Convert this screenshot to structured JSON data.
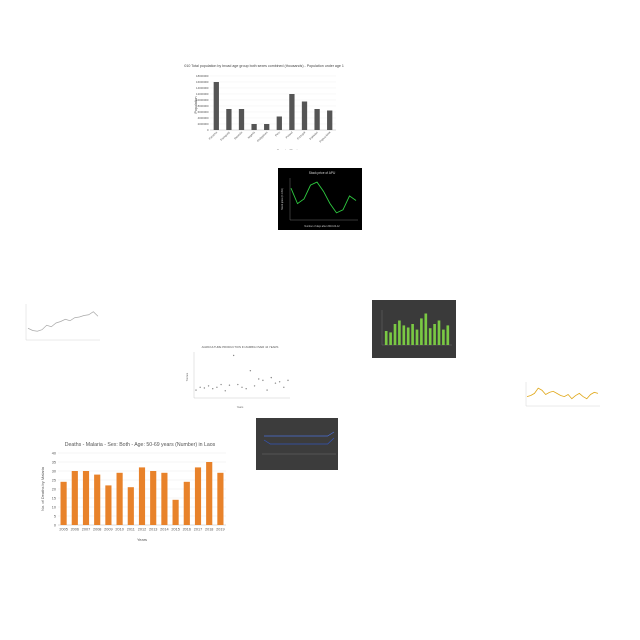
{
  "chart_data": [
    {
      "type": "bar",
      "title": "Edmonds, 1960 - 2010 Total population by broad age group both sexes combined (thousands) - Population under age 15 for the year 1965",
      "xlabel": "Country/Region",
      "ylabel": "Population",
      "categories": [
        "Panama",
        "Paraguay",
        "Rwanda",
        "Nigeria",
        "Philippines",
        "Peru",
        "Poland",
        "Portugal",
        "Pakistan",
        "Papua New"
      ],
      "values": [
        16000000,
        7000000,
        7000000,
        2000000,
        2000000,
        4500000,
        12000000,
        9500000,
        7000000,
        6500000
      ],
      "yticks": [
        "0",
        "2000000",
        "4000000",
        "6000000",
        "8000000",
        "10000000",
        "12000000",
        "14000000",
        "16000000",
        "18000000"
      ],
      "ylim": [
        0,
        18000000
      ],
      "colors": {
        "bar": "#555555",
        "background": "#ffffff"
      }
    },
    {
      "type": "line",
      "title": "Stock price of APU",
      "xlabel": "Number of days after 2010-04-12",
      "ylabel": "Stock price (in USD)",
      "x": [
        0,
        1,
        2,
        3,
        4,
        5,
        6,
        7,
        8,
        9,
        10
      ],
      "values": [
        38,
        28,
        31,
        40,
        42,
        36,
        28,
        22,
        24,
        33,
        30
      ],
      "colors": {
        "line": "#2ecc40",
        "background": "#000000"
      }
    },
    {
      "type": "line",
      "title": "",
      "x": [
        1,
        2,
        3,
        4,
        5,
        6,
        7,
        8,
        9,
        10,
        11,
        12,
        13,
        14,
        15,
        16
      ],
      "values": [
        48,
        45,
        44,
        46,
        52,
        50,
        55,
        57,
        60,
        58,
        62,
        63,
        65,
        66,
        70,
        64
      ],
      "colors": {
        "line": "#aaaaaa",
        "background": "#ffffff"
      }
    },
    {
      "type": "bar",
      "title": "",
      "x": [
        1,
        2,
        3,
        4,
        5,
        6,
        7,
        8,
        9,
        10,
        11,
        12,
        13,
        14,
        15
      ],
      "values": [
        20,
        18,
        30,
        35,
        28,
        25,
        30,
        22,
        38,
        45,
        24,
        30,
        35,
        22,
        28
      ],
      "colors": {
        "bar": "#7ac943",
        "background": "#3a3a3a"
      }
    },
    {
      "type": "scatter",
      "title": "AGRICULTURE PRODUCTION IN ZAMBIA OVER 44 YEARS",
      "xlabel": "Years",
      "ylabel": "Tonnes",
      "x": [
        0,
        2,
        4,
        6,
        8,
        10,
        12,
        14,
        16,
        18,
        20,
        22,
        24,
        26,
        28,
        30,
        32,
        34,
        36,
        38,
        40,
        42,
        44
      ],
      "values": [
        10,
        14,
        13,
        16,
        12,
        14,
        18,
        9,
        17,
        60,
        18,
        14,
        12,
        38,
        16,
        26,
        24,
        10,
        28,
        20,
        22,
        14,
        24
      ],
      "colors": {
        "point": "#888888",
        "background": "#ffffff"
      }
    },
    {
      "type": "line",
      "title": "",
      "x": [
        1,
        2,
        3,
        4,
        5,
        6,
        7,
        8,
        9,
        10,
        11,
        12,
        13,
        14,
        15,
        16,
        17,
        18,
        19,
        20
      ],
      "values": [
        52,
        53,
        55,
        60,
        58,
        54,
        56,
        57,
        55,
        53,
        52,
        54,
        50,
        53,
        55,
        52,
        50,
        54,
        56,
        55
      ],
      "colors": {
        "line": "#e0a81a",
        "background": "#ffffff"
      }
    },
    {
      "type": "line",
      "title": "",
      "x": [
        1,
        2,
        3,
        4,
        5,
        6,
        7,
        8,
        9,
        10,
        11,
        12
      ],
      "series": [
        {
          "values": [
            12,
            12,
            12,
            12,
            12,
            12,
            12,
            12,
            12,
            12,
            12,
            14
          ]
        },
        {
          "values": [
            10,
            8,
            8,
            8,
            8,
            8,
            8,
            8,
            8,
            8,
            8,
            11
          ]
        }
      ],
      "colors": {
        "series": [
          "#4a6fd6",
          "#3354b8"
        ],
        "background": "#3c3c3c"
      }
    },
    {
      "type": "bar",
      "title": "Deaths - Malaria - Sex: Both - Age: 50-69 years (Number) in Laos",
      "xlabel": "Years",
      "ylabel": "No. of Deaths by Malaria",
      "categories": [
        "2005",
        "2006",
        "2007",
        "2008",
        "2009",
        "2010",
        "2011",
        "2012",
        "2013",
        "2014",
        "2015",
        "2016",
        "2017",
        "2018",
        "2019"
      ],
      "values": [
        24,
        30,
        30,
        28,
        22,
        29,
        21,
        32,
        30,
        29,
        14,
        24,
        32,
        35,
        29
      ],
      "yticks": [
        "0",
        "5",
        "10",
        "15",
        "20",
        "25",
        "30",
        "35",
        "40"
      ],
      "ylim": [
        0,
        40
      ],
      "colors": {
        "bar": "#e8822a",
        "background": "#ffffff"
      }
    }
  ]
}
